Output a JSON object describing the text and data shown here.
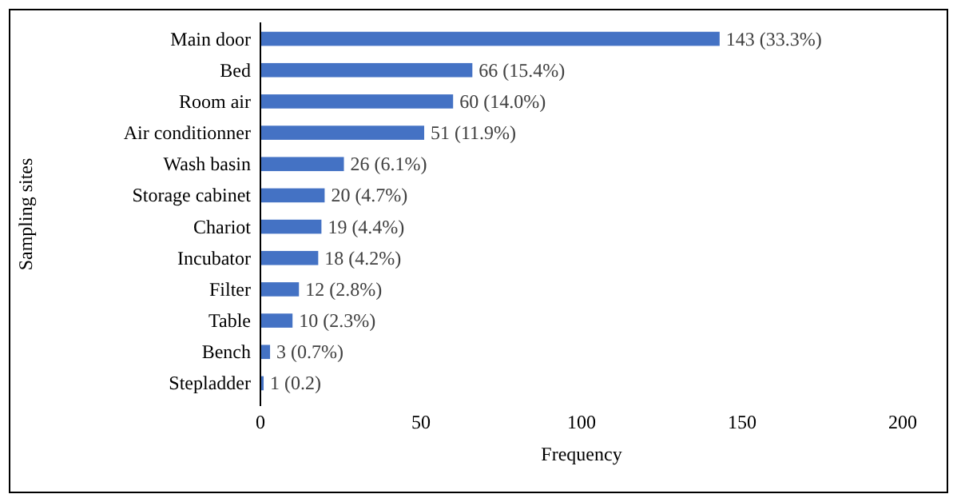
{
  "chart_data": {
    "type": "bar",
    "orientation": "horizontal",
    "xlabel": "Frequency",
    "ylabel": "Sampling sites",
    "categories": [
      "Main door",
      "Bed",
      "Room air",
      "Air conditionner",
      "Wash basin",
      "Storage cabinet",
      "Chariot",
      "Incubator",
      "Filter",
      "Table",
      "Bench",
      "Stepladder"
    ],
    "values": [
      143,
      66,
      60,
      51,
      26,
      20,
      19,
      18,
      12,
      10,
      3,
      1
    ],
    "value_labels": [
      "143 (33.3%)",
      "66 (15.4%)",
      "60 (14.0%)",
      "51 (11.9%)",
      "26 (6.1%)",
      "20 (4.7%)",
      "19 (4.4%)",
      "18 (4.2%)",
      "12 (2.8%)",
      "10 (2.3%)",
      "3 (0.7%)",
      "1 (0.2)"
    ],
    "color": "#4472c4",
    "xlim": [
      0,
      200
    ],
    "xticks": [
      0,
      50,
      100,
      150,
      200
    ],
    "grid": false
  }
}
